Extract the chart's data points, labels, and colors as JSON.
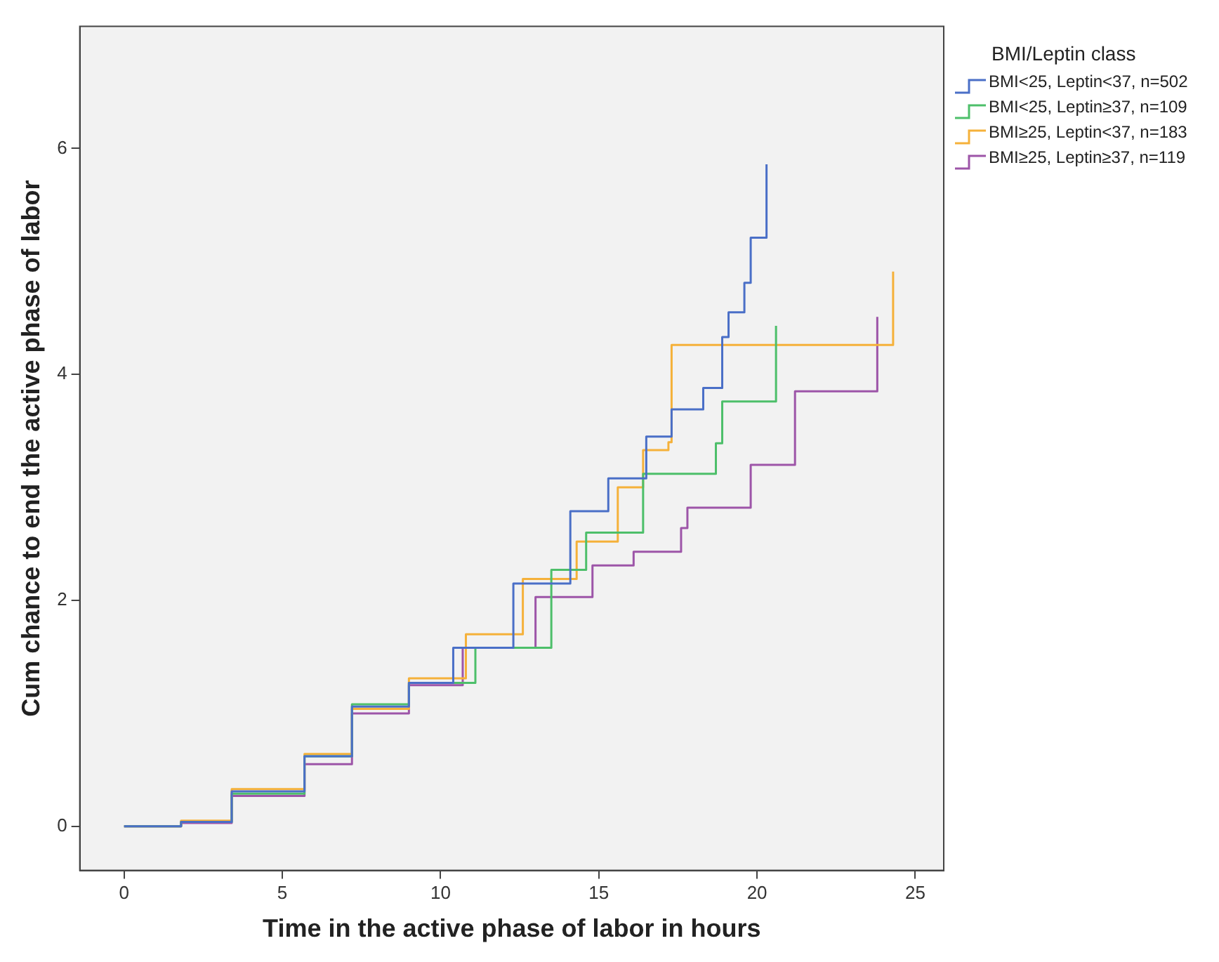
{
  "chart_data": {
    "type": "step",
    "xlabel": "Time in the active phase of labor in hours",
    "ylabel": "Cum chance to end the active phase of labor",
    "legend_title": "BMI/Leptin class",
    "legend": "right",
    "grid": false,
    "xlim": [
      -1.4,
      25.9
    ],
    "ylim": [
      -0.39,
      7.08
    ],
    "xticks": [
      0,
      5,
      10,
      15,
      20,
      25
    ],
    "yticks": [
      0,
      2,
      4,
      6
    ],
    "series": [
      {
        "name": "BMI<25, Leptin<37, n=502",
        "color": "#4a6fc7",
        "x": [
          0,
          1.8,
          3.4,
          5.7,
          7.2,
          9.0,
          10.4,
          12.3,
          14.1,
          15.3,
          16.5,
          17.3,
          18.3,
          18.9,
          19.1,
          19.6,
          19.8,
          20.3,
          20.3
        ],
        "values": [
          0,
          0.04,
          0.31,
          0.62,
          1.06,
          1.27,
          1.58,
          2.15,
          2.79,
          3.08,
          3.45,
          3.69,
          3.88,
          4.33,
          4.55,
          4.81,
          5.21,
          5.21,
          5.86
        ]
      },
      {
        "name": "BMI<25, Leptin≥37, n=109",
        "color": "#4dbf6a",
        "x": [
          0,
          1.8,
          3.4,
          5.7,
          7.2,
          9.0,
          11.1,
          13.5,
          14.6,
          16.4,
          18.7,
          18.9,
          20.6,
          20.6
        ],
        "values": [
          0,
          0.04,
          0.29,
          0.62,
          1.08,
          1.27,
          1.58,
          2.27,
          2.6,
          3.12,
          3.39,
          3.76,
          3.76,
          4.43
        ]
      },
      {
        "name": "BMI≥25, Leptin<37, n=183",
        "color": "#f5b13a",
        "x": [
          0,
          1.8,
          3.4,
          5.7,
          7.2,
          9.0,
          10.8,
          12.6,
          14.3,
          15.6,
          16.4,
          17.2,
          17.3,
          17.3,
          24.3,
          24.3
        ],
        "values": [
          0,
          0.05,
          0.33,
          0.64,
          1.04,
          1.31,
          1.7,
          2.19,
          2.52,
          3.0,
          3.33,
          3.4,
          3.88,
          4.26,
          4.26,
          4.91
        ]
      },
      {
        "name": "BMI≥25, Leptin≥37, n=119",
        "color": "#9d55a8",
        "x": [
          0,
          1.8,
          3.4,
          5.7,
          7.2,
          9.0,
          10.7,
          13.0,
          14.8,
          16.1,
          17.6,
          17.8,
          19.5,
          19.8,
          21.1,
          21.2,
          23.8,
          23.8
        ],
        "values": [
          0,
          0.03,
          0.27,
          0.55,
          1.0,
          1.25,
          1.58,
          2.03,
          2.31,
          2.43,
          2.64,
          2.82,
          2.82,
          3.2,
          3.2,
          3.85,
          3.85,
          4.51
        ]
      }
    ]
  }
}
